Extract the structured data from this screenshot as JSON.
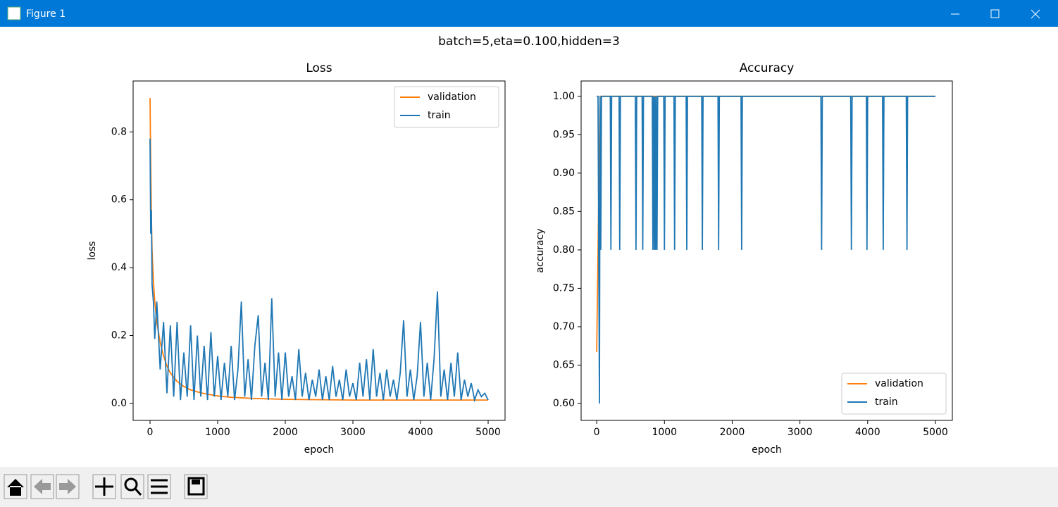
{
  "window": {
    "title": "Figure 1"
  },
  "suptitle": "batch=5,eta=0.100,hidden=3",
  "chart_data": [
    {
      "type": "line",
      "title": "Loss",
      "xlabel": "epoch",
      "ylabel": "loss",
      "xlim": [
        -250,
        5250
      ],
      "ylim": [
        -0.05,
        0.95
      ],
      "xticks": [
        0,
        1000,
        2000,
        3000,
        4000,
        5000
      ],
      "yticks": [
        {
          "value": 0.0,
          "label": "0.0"
        },
        0.2,
        0.4,
        0.6,
        0.8
      ],
      "legend": "upper right",
      "series": [
        {
          "name": "validation",
          "color": "#ff7f0e",
          "x": [
            0,
            10,
            20,
            30,
            50,
            70,
            100,
            150,
            200,
            250,
            300,
            400,
            500,
            600,
            700,
            800,
            1000,
            1200,
            1500,
            2000,
            2500,
            3000,
            4000,
            5000
          ],
          "values": [
            0.9,
            0.7,
            0.55,
            0.45,
            0.36,
            0.3,
            0.24,
            0.18,
            0.14,
            0.11,
            0.09,
            0.065,
            0.05,
            0.04,
            0.034,
            0.029,
            0.022,
            0.018,
            0.015,
            0.012,
            0.011,
            0.01,
            0.01,
            0.01
          ]
        },
        {
          "name": "train",
          "color": "#1f77b4",
          "x": [
            0,
            10,
            20,
            30,
            50,
            70,
            100,
            150,
            200,
            250,
            300,
            350,
            400,
            450,
            500,
            550,
            600,
            650,
            700,
            750,
            800,
            850,
            900,
            950,
            1000,
            1050,
            1100,
            1150,
            1200,
            1250,
            1300,
            1350,
            1400,
            1450,
            1500,
            1550,
            1600,
            1650,
            1700,
            1750,
            1800,
            1850,
            1900,
            1950,
            2000,
            2050,
            2100,
            2150,
            2200,
            2250,
            2300,
            2350,
            2400,
            2450,
            2500,
            2550,
            2600,
            2650,
            2700,
            2750,
            2800,
            2850,
            2900,
            2950,
            3000,
            3050,
            3100,
            3150,
            3200,
            3250,
            3300,
            3350,
            3400,
            3450,
            3500,
            3550,
            3600,
            3650,
            3700,
            3750,
            3800,
            3850,
            3900,
            3950,
            4000,
            4050,
            4100,
            4150,
            4200,
            4250,
            4300,
            4350,
            4400,
            4450,
            4500,
            4550,
            4600,
            4650,
            4700,
            4750,
            4800,
            4850,
            4900,
            4950,
            5000
          ],
          "values": [
            0.78,
            0.5,
            0.57,
            0.35,
            0.3,
            0.19,
            0.3,
            0.1,
            0.24,
            0.03,
            0.23,
            0.02,
            0.24,
            0.01,
            0.15,
            0.02,
            0.23,
            0.01,
            0.2,
            0.02,
            0.17,
            0.01,
            0.21,
            0.02,
            0.14,
            0.01,
            0.12,
            0.02,
            0.17,
            0.01,
            0.1,
            0.3,
            0.02,
            0.13,
            0.01,
            0.17,
            0.26,
            0.02,
            0.12,
            0.01,
            0.31,
            0.02,
            0.15,
            0.01,
            0.15,
            0.02,
            0.08,
            0.01,
            0.16,
            0.02,
            0.09,
            0.01,
            0.07,
            0.02,
            0.1,
            0.01,
            0.08,
            0.01,
            0.11,
            0.02,
            0.07,
            0.01,
            0.1,
            0.02,
            0.06,
            0.01,
            0.12,
            0.02,
            0.13,
            0.01,
            0.16,
            0.02,
            0.09,
            0.01,
            0.1,
            0.02,
            0.07,
            0.01,
            0.09,
            0.245,
            0.02,
            0.1,
            0.01,
            0.08,
            0.24,
            0.02,
            0.12,
            0.01,
            0.13,
            0.33,
            0.02,
            0.1,
            0.01,
            0.12,
            0.02,
            0.15,
            0.01,
            0.07,
            0.02,
            0.06,
            0.01,
            0.04,
            0.02,
            0.03,
            0.01
          ]
        }
      ]
    },
    {
      "type": "line",
      "title": "Accuracy",
      "xlabel": "epoch",
      "ylabel": "accuracy",
      "xlim": [
        -230,
        5250
      ],
      "ylim": [
        0.578,
        1.02
      ],
      "xticks": [
        0,
        1000,
        2000,
        3000,
        4000,
        5000
      ],
      "yticks": [
        {
          "value": 0.6,
          "label": "0.60"
        },
        0.65,
        {
          "value": 0.7,
          "label": "0.70"
        },
        0.75,
        {
          "value": 0.8,
          "label": "0.80"
        },
        0.85,
        {
          "value": 0.9,
          "label": "0.90"
        },
        0.95,
        {
          "value": 1.0,
          "label": "1.00"
        }
      ],
      "legend": "lower right",
      "series": [
        {
          "name": "validation",
          "color": "#ff7f0e",
          "x": [
            0,
            50,
            5000
          ],
          "values": [
            0.667,
            1.0,
            1.0
          ]
        },
        {
          "name": "train",
          "color": "#1f77b4",
          "x": [
            0,
            20,
            40,
            50,
            60,
            70,
            200,
            210,
            220,
            330,
            340,
            350,
            570,
            580,
            590,
            670,
            680,
            690,
            820,
            830,
            840,
            850,
            860,
            870,
            880,
            890,
            900,
            990,
            1000,
            1010,
            1140,
            1150,
            1160,
            1320,
            1330,
            1340,
            1550,
            1560,
            1570,
            1790,
            1800,
            1810,
            2130,
            2140,
            2150,
            3310,
            3320,
            3330,
            3750,
            3760,
            3770,
            3980,
            3990,
            4000,
            4220,
            4230,
            4240,
            4570,
            4580,
            4590,
            5000
          ],
          "values": [
            1.0,
            1.0,
            0.6,
            1.0,
            0.8,
            1.0,
            1.0,
            0.8,
            1.0,
            1.0,
            0.8,
            1.0,
            1.0,
            0.8,
            1.0,
            1.0,
            0.8,
            1.0,
            1.0,
            0.8,
            1.0,
            0.8,
            1.0,
            0.8,
            1.0,
            0.8,
            1.0,
            1.0,
            0.8,
            1.0,
            1.0,
            0.8,
            1.0,
            1.0,
            0.8,
            1.0,
            1.0,
            0.8,
            1.0,
            1.0,
            0.8,
            1.0,
            1.0,
            0.8,
            1.0,
            1.0,
            0.8,
            1.0,
            1.0,
            0.8,
            1.0,
            1.0,
            0.8,
            1.0,
            1.0,
            0.8,
            1.0,
            1.0,
            0.8,
            1.0,
            1.0
          ]
        }
      ]
    }
  ]
}
